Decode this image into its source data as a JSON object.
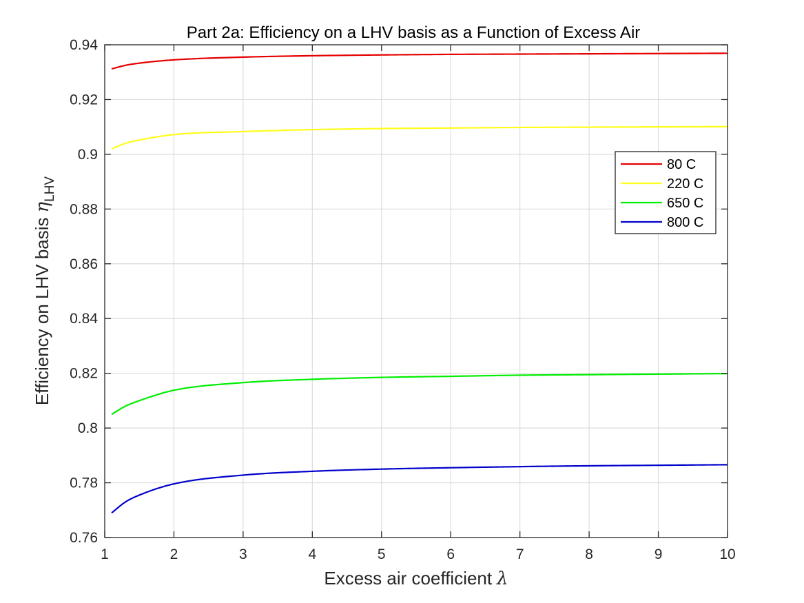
{
  "chart_data": {
    "type": "line",
    "title": "Part 2a: Efficiency on a LHV basis as a Function of Excess Air",
    "xlabel": "Excess air coefficient",
    "xlabel_symbol": "λ",
    "ylabel": "Efficiency on LHV basis",
    "ylabel_symbol": "η",
    "ylabel_subscript": "LHV",
    "xlim": [
      1,
      10
    ],
    "ylim": [
      0.76,
      0.94
    ],
    "grid": true,
    "legend_position": "top-right",
    "xticks": [
      "1",
      "2",
      "3",
      "4",
      "5",
      "6",
      "7",
      "8",
      "9",
      "10"
    ],
    "yticks": [
      "0.76",
      "0.78",
      "0.8",
      "0.82",
      "0.84",
      "0.86",
      "0.88",
      "0.9",
      "0.92",
      "0.94"
    ],
    "x": [
      1.1,
      1.3,
      1.5,
      2,
      3,
      4,
      5,
      6,
      7,
      8,
      9,
      10
    ],
    "series": [
      {
        "name": "80 C",
        "color": "#e60000",
        "values": [
          0.9312,
          0.9325,
          0.9333,
          0.9345,
          0.9355,
          0.936,
          0.9363,
          0.9365,
          0.9366,
          0.9367,
          0.9368,
          0.9369
        ]
      },
      {
        "name": "220 C",
        "color": "#ffff1a",
        "values": [
          0.902,
          0.904,
          0.9052,
          0.9072,
          0.9083,
          0.909,
          0.9094,
          0.9096,
          0.9098,
          0.9099,
          0.91,
          0.9101
        ]
      },
      {
        "name": "650 C",
        "color": "#00ee00",
        "values": [
          0.805,
          0.808,
          0.81,
          0.8138,
          0.8166,
          0.8178,
          0.8185,
          0.8189,
          0.8193,
          0.8195,
          0.8197,
          0.8199
        ]
      },
      {
        "name": "800 C",
        "color": "#0000cc",
        "values": [
          0.769,
          0.773,
          0.7755,
          0.7796,
          0.7828,
          0.7842,
          0.785,
          0.7855,
          0.7859,
          0.7862,
          0.7864,
          0.7866
        ]
      }
    ]
  }
}
